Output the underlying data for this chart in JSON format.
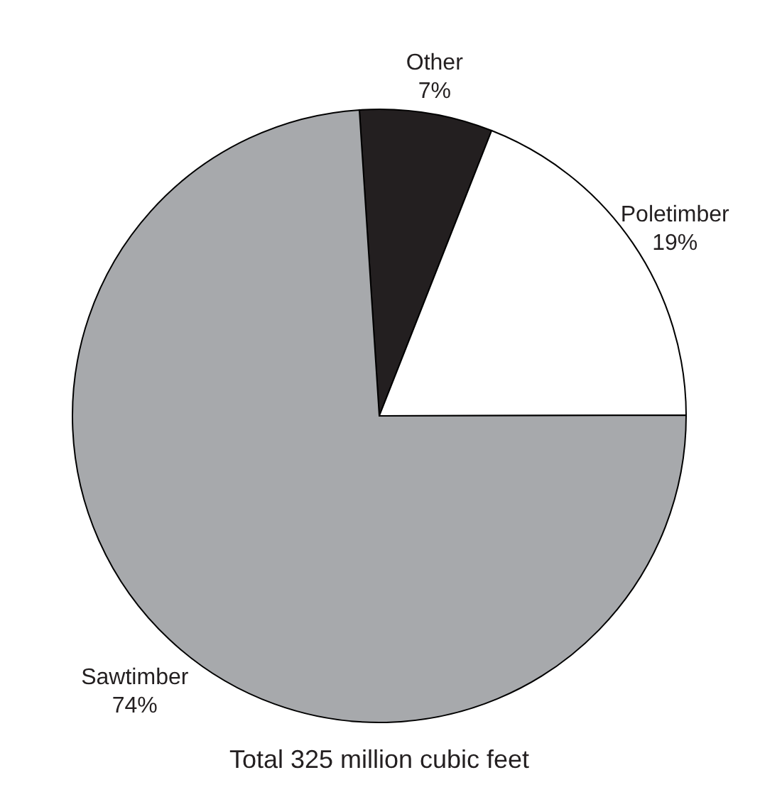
{
  "chart_data": {
    "type": "pie",
    "categories": [
      "Other",
      "Poletimber",
      "Sawtimber"
    ],
    "values": [
      7,
      19,
      74
    ],
    "value_labels": [
      "7%",
      "19%",
      "74%"
    ],
    "colors": [
      "#231f20",
      "#ffffff",
      "#a7a9ac"
    ],
    "annotations": [
      "Total 325 million cubic feet"
    ]
  }
}
